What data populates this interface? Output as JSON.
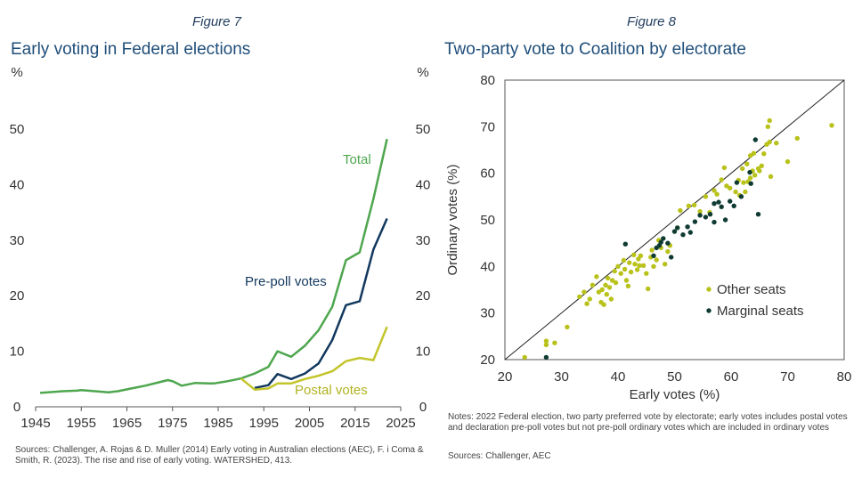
{
  "left": {
    "figure_label": "Figure 7",
    "title": "Early voting in Federal elections",
    "source": "Sources: Challenger, A. Rojas & D. Muller (2014) Early voting in Australian elections (AEC), F. i Coma & Smith, R. (2023). The rise and rise of early voting. WATERSHED, 413."
  },
  "right": {
    "figure_label": "Figure 8",
    "title": "Two-party vote to Coalition by electorate",
    "notes": "Notes: 2022 Federal election, two party preferred vote by electorate; early votes includes postal votes and declaration pre-poll votes but not pre-poll ordinary votes which are included in ordinary votes",
    "sources": "Sources: Challenger, AEC"
  },
  "chart_data": [
    {
      "type": "line",
      "title": "Early voting in Federal elections",
      "xlabel": "",
      "ylabel": "%",
      "ylabel_right": "%",
      "xlim": [
        1945,
        2025
      ],
      "ylim": [
        0,
        50
      ],
      "x_ticks": [
        1945,
        1955,
        1965,
        1975,
        1985,
        1995,
        2005,
        2015,
        2025
      ],
      "y_ticks": [
        0,
        10,
        20,
        30,
        40,
        50
      ],
      "grid": false,
      "series": [
        {
          "name": "Total",
          "color": "#4ea64e",
          "x": [
            1946,
            1949,
            1951,
            1954,
            1955,
            1958,
            1961,
            1963,
            1966,
            1969,
            1972,
            1974,
            1975,
            1977,
            1980,
            1983,
            1984,
            1987,
            1990,
            1993,
            1996,
            1998,
            2001,
            2004,
            2007,
            2010,
            2013,
            2016,
            2019,
            2022
          ],
          "values": [
            2.5,
            2.7,
            2.8,
            2.9,
            3.0,
            2.8,
            2.6,
            2.8,
            3.3,
            3.8,
            4.4,
            4.8,
            4.6,
            3.8,
            4.3,
            4.2,
            4.2,
            4.6,
            5.1,
            6.0,
            7.2,
            10.0,
            9.0,
            11.0,
            13.8,
            18.0,
            26.4,
            27.8,
            37.4,
            48.2
          ]
        },
        {
          "name": "Pre-poll votes",
          "color": "#12385e",
          "x": [
            1993,
            1996,
            1998,
            2001,
            2004,
            2007,
            2010,
            2013,
            2016,
            2019,
            2022
          ],
          "values": [
            3.4,
            3.9,
            5.9,
            5.0,
            6.0,
            7.8,
            12.0,
            18.3,
            19.0,
            28.3,
            33.9
          ]
        },
        {
          "name": "Postal votes",
          "color": "#c3c52a",
          "x": [
            1990,
            1993,
            1996,
            1998,
            2001,
            2004,
            2007,
            2010,
            2013,
            2016,
            2019,
            2022
          ],
          "values": [
            5.1,
            3.1,
            3.3,
            4.2,
            4.2,
            5.0,
            5.6,
            6.4,
            8.2,
            8.8,
            8.4,
            14.4
          ]
        }
      ],
      "labels": {
        "total": "Total",
        "prepoll": "Pre-poll votes",
        "postal": "Postal votes"
      }
    },
    {
      "type": "scatter",
      "title": "Two-party vote to Coalition by electorate",
      "xlabel": "Early votes (%)",
      "ylabel": "Ordinary votes (%)",
      "xlim": [
        20,
        80
      ],
      "ylim": [
        20,
        80
      ],
      "x_ticks": [
        20,
        30,
        40,
        50,
        60,
        70,
        80
      ],
      "y_ticks": [
        20,
        30,
        40,
        50,
        60,
        70,
        80
      ],
      "reference_line": "y = x",
      "legend_position": "center-right",
      "series": [
        {
          "name": "Other seats",
          "color": "#b9c21a",
          "points": [
            [
              23.5,
              20.5
            ],
            [
              27.3,
              24.0
            ],
            [
              27.3,
              23.2
            ],
            [
              28.8,
              23.6
            ],
            [
              31,
              27
            ],
            [
              33.2,
              33.5
            ],
            [
              34,
              34.5
            ],
            [
              34.5,
              32
            ],
            [
              35,
              33
            ],
            [
              35.5,
              36
            ],
            [
              36.2,
              37.8
            ],
            [
              36.6,
              34.5
            ],
            [
              37,
              32.3
            ],
            [
              37.2,
              35
            ],
            [
              37.5,
              31.8
            ],
            [
              37.8,
              36
            ],
            [
              38,
              34
            ],
            [
              38.2,
              37.5
            ],
            [
              38.5,
              35.5
            ],
            [
              38.8,
              33
            ],
            [
              39,
              37
            ],
            [
              39.4,
              39
            ],
            [
              39.6,
              36.5
            ],
            [
              40,
              40
            ],
            [
              40.5,
              38.5
            ],
            [
              41,
              41.3
            ],
            [
              41.2,
              39.4
            ],
            [
              41.5,
              37
            ],
            [
              41.8,
              35.8
            ],
            [
              42,
              40.8
            ],
            [
              42.3,
              38.8
            ],
            [
              42.8,
              42.5
            ],
            [
              43,
              40.5
            ],
            [
              43.4,
              39.3
            ],
            [
              43.6,
              41.6
            ],
            [
              43.8,
              40.2
            ],
            [
              44,
              42.3
            ],
            [
              44.5,
              40.2
            ],
            [
              45,
              38.5
            ],
            [
              45.3,
              35.2
            ],
            [
              45.8,
              42
            ],
            [
              46,
              43.5
            ],
            [
              46.3,
              40
            ],
            [
              46.8,
              41.4
            ],
            [
              47.2,
              45.6
            ],
            [
              47.6,
              44
            ],
            [
              48.3,
              40.5
            ],
            [
              48.8,
              43.2
            ],
            [
              49.2,
              44.5
            ],
            [
              50.5,
              48.3
            ],
            [
              51,
              52
            ],
            [
              52.5,
              53
            ],
            [
              53.5,
              53.2
            ],
            [
              54.5,
              51.8
            ],
            [
              55.5,
              55
            ],
            [
              56.2,
              51.6
            ],
            [
              57,
              56.3
            ],
            [
              57.5,
              55.5
            ],
            [
              58.3,
              58.6
            ],
            [
              58.8,
              61.2
            ],
            [
              59.2,
              57.3
            ],
            [
              59.8,
              56.8
            ],
            [
              60.8,
              56
            ],
            [
              61.5,
              55.3
            ],
            [
              61.3,
              58.5
            ],
            [
              62,
              61
            ],
            [
              62.2,
              58
            ],
            [
              62.5,
              56
            ],
            [
              62.8,
              62
            ],
            [
              63,
              58.2
            ],
            [
              63.4,
              59
            ],
            [
              63.8,
              60.5
            ],
            [
              63.4,
              63.8
            ],
            [
              64,
              64.3
            ],
            [
              64.2,
              59.6
            ],
            [
              64.8,
              61
            ],
            [
              65,
              60.5
            ],
            [
              65.4,
              61.6
            ],
            [
              65.8,
              64.2
            ],
            [
              66.3,
              66.2
            ],
            [
              66.5,
              70
            ],
            [
              66.8,
              66.7
            ],
            [
              66.8,
              71.3
            ],
            [
              67,
              59.3
            ],
            [
              68,
              66.5
            ],
            [
              70,
              62.5
            ],
            [
              71.7,
              67.5
            ],
            [
              77.8,
              70.3
            ]
          ]
        },
        {
          "name": "Marginal seats",
          "color": "#0f3b33",
          "points": [
            [
              27.3,
              20.5
            ],
            [
              41.3,
              44.8
            ],
            [
              46.3,
              42.3
            ],
            [
              46.8,
              44
            ],
            [
              47.3,
              44.5
            ],
            [
              47.6,
              45.2
            ],
            [
              48,
              46
            ],
            [
              48.8,
              45
            ],
            [
              49.4,
              42
            ],
            [
              50,
              47.5
            ],
            [
              50.5,
              48.3
            ],
            [
              51.5,
              46.8
            ],
            [
              52.3,
              48.5
            ],
            [
              52.8,
              47.3
            ],
            [
              53.6,
              49.6
            ],
            [
              54.5,
              51
            ],
            [
              55.5,
              50.6
            ],
            [
              56.3,
              51.2
            ],
            [
              57,
              49.5
            ],
            [
              57,
              53.5
            ],
            [
              57.8,
              53.8
            ],
            [
              58.3,
              52.8
            ],
            [
              59,
              50
            ],
            [
              59.8,
              54
            ],
            [
              60.5,
              53
            ],
            [
              61,
              58
            ],
            [
              61.8,
              55
            ],
            [
              63.3,
              60.2
            ],
            [
              63.5,
              57.8
            ],
            [
              64.3,
              67.2
            ],
            [
              64.8,
              51.2
            ]
          ]
        }
      ]
    }
  ]
}
